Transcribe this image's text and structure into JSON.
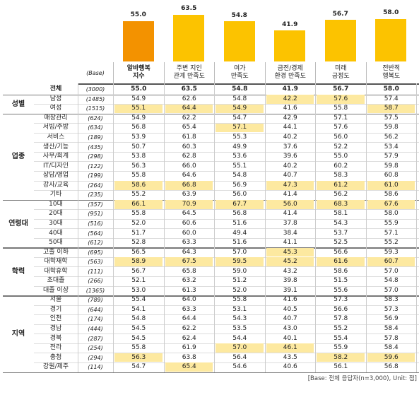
{
  "chart_data": {
    "type": "bar",
    "categories": [
      "알바행복\n지수",
      "주변 지인\n관계 만족도",
      "여가\n만족도",
      "금전/경제\n환경 만족도",
      "미래\n긍정도",
      "전반적\n행복도"
    ],
    "values": [
      55.0,
      63.5,
      54.8,
      41.9,
      56.7,
      58.0
    ],
    "value_labels": [
      "55.0",
      "63.5",
      "54.8",
      "41.9",
      "56.7",
      "58.0"
    ],
    "colors": [
      "#f39200",
      "#fcc300",
      "#fcc300",
      "#fcc300",
      "#fcc300",
      "#fcc300"
    ]
  },
  "table": {
    "base_header": "(Base)",
    "total": {
      "label": "전체",
      "base": "(3000)",
      "cells": [
        "55.0",
        "63.5",
        "54.8",
        "41.9",
        "56.7",
        "58.0"
      ]
    },
    "groups": [
      {
        "label": "성별",
        "rows": [
          {
            "label": "남성",
            "base": "(1485)",
            "cells": [
              "54.9",
              "62.6",
              "54.8",
              "42.2",
              "57.6",
              "57.4"
            ],
            "highlight": [
              3,
              4
            ]
          },
          {
            "label": "여성",
            "base": "(1515)",
            "cells": [
              "55.1",
              "64.4",
              "54.9",
              "41.6",
              "55.8",
              "58.7"
            ],
            "highlight": [
              0,
              1,
              2,
              5
            ]
          }
        ]
      },
      {
        "label": "업종",
        "rows": [
          {
            "label": "매장관리",
            "base": "(624)",
            "cells": [
              "54.9",
              "62.2",
              "54.7",
              "42.9",
              "57.1",
              "57.5"
            ],
            "highlight": []
          },
          {
            "label": "서빙/주방",
            "base": "(634)",
            "cells": [
              "56.8",
              "65.4",
              "57.1",
              "44.1",
              "57.6",
              "59.8"
            ],
            "highlight": [
              2
            ]
          },
          {
            "label": "서비스",
            "base": "(189)",
            "cells": [
              "53.9",
              "61.8",
              "55.3",
              "40.2",
              "56.0",
              "56.2"
            ],
            "highlight": []
          },
          {
            "label": "생산/기능",
            "base": "(435)",
            "cells": [
              "50.7",
              "60.3",
              "49.9",
              "37.6",
              "52.2",
              "53.4"
            ],
            "highlight": []
          },
          {
            "label": "사무/회계",
            "base": "(298)",
            "cells": [
              "53.8",
              "62.8",
              "53.6",
              "39.6",
              "55.0",
              "57.9"
            ],
            "highlight": []
          },
          {
            "label": "IT/디자인",
            "base": "(122)",
            "cells": [
              "56.3",
              "66.0",
              "55.1",
              "40.2",
              "60.2",
              "59.8"
            ],
            "highlight": []
          },
          {
            "label": "상담/영업",
            "base": "(199)",
            "cells": [
              "55.8",
              "64.6",
              "54.8",
              "40.7",
              "58.3",
              "60.8"
            ],
            "highlight": []
          },
          {
            "label": "강사/교육",
            "base": "(264)",
            "cells": [
              "58.6",
              "66.8",
              "56.9",
              "47.3",
              "61.2",
              "61.0"
            ],
            "highlight": [
              0,
              1,
              3,
              4,
              5
            ]
          },
          {
            "label": "기타",
            "base": "(235)",
            "cells": [
              "55.2",
              "63.9",
              "56.0",
              "41.4",
              "56.2",
              "58.6"
            ],
            "highlight": []
          }
        ]
      },
      {
        "label": "연령대",
        "rows": [
          {
            "label": "10대",
            "base": "(357)",
            "cells": [
              "66.1",
              "70.9",
              "67.7",
              "56.0",
              "68.3",
              "67.6"
            ],
            "highlight": [
              0,
              1,
              2,
              3,
              4,
              5
            ]
          },
          {
            "label": "20대",
            "base": "(951)",
            "cells": [
              "55.8",
              "64.5",
              "56.8",
              "41.4",
              "58.1",
              "58.0"
            ],
            "highlight": []
          },
          {
            "label": "30대",
            "base": "(516)",
            "cells": [
              "52.0",
              "60.6",
              "51.6",
              "37.8",
              "54.3",
              "55.9"
            ],
            "highlight": []
          },
          {
            "label": "40대",
            "base": "(564)",
            "cells": [
              "51.7",
              "60.0",
              "49.4",
              "38.4",
              "53.7",
              "57.1"
            ],
            "highlight": []
          },
          {
            "label": "50대",
            "base": "(612)",
            "cells": [
              "52.8",
              "63.3",
              "51.6",
              "41.1",
              "52.5",
              "55.2"
            ],
            "highlight": []
          }
        ]
      },
      {
        "label": "학력",
        "rows": [
          {
            "label": "고졸 이하",
            "base": "(695)",
            "cells": [
              "56.5",
              "64.3",
              "57.0",
              "45.3",
              "56.6",
              "59.3"
            ],
            "highlight": [
              3
            ]
          },
          {
            "label": "대학재학",
            "base": "(563)",
            "cells": [
              "58.9",
              "67.5",
              "59.5",
              "45.2",
              "61.6",
              "60.7"
            ],
            "highlight": [
              0,
              1,
              2,
              3,
              4,
              5
            ]
          },
          {
            "label": "대학휴학",
            "base": "(111)",
            "cells": [
              "56.7",
              "65.8",
              "59.0",
              "43.2",
              "58.6",
              "57.0"
            ],
            "highlight": []
          },
          {
            "label": "초대졸",
            "base": "(266)",
            "cells": [
              "52.1",
              "63.2",
              "51.2",
              "39.8",
              "51.5",
              "54.8"
            ],
            "highlight": []
          },
          {
            "label": "대졸 이상",
            "base": "(1365)",
            "cells": [
              "53.0",
              "61.3",
              "52.0",
              "39.1",
              "55.6",
              "57.0"
            ],
            "highlight": []
          }
        ]
      },
      {
        "label": "지역",
        "rows": [
          {
            "label": "서울",
            "base": "(789)",
            "cells": [
              "55.4",
              "64.0",
              "55.8",
              "41.6",
              "57.3",
              "58.3"
            ],
            "highlight": []
          },
          {
            "label": "경기",
            "base": "(644)",
            "cells": [
              "54.1",
              "63.3",
              "53.1",
              "40.5",
              "56.6",
              "57.3"
            ],
            "highlight": []
          },
          {
            "label": "인천",
            "base": "(174)",
            "cells": [
              "54.8",
              "64.4",
              "54.3",
              "40.7",
              "57.8",
              "56.9"
            ],
            "highlight": []
          },
          {
            "label": "경남",
            "base": "(444)",
            "cells": [
              "54.5",
              "62.2",
              "53.5",
              "43.0",
              "55.2",
              "58.4"
            ],
            "highlight": []
          },
          {
            "label": "경북",
            "base": "(287)",
            "cells": [
              "54.5",
              "62.4",
              "54.4",
              "40.1",
              "55.4",
              "57.8"
            ],
            "highlight": []
          },
          {
            "label": "전라",
            "base": "(254)",
            "cells": [
              "55.8",
              "61.9",
              "57.0",
              "46.1",
              "55.9",
              "58.4"
            ],
            "highlight": [
              2,
              3
            ]
          },
          {
            "label": "충청",
            "base": "(294)",
            "cells": [
              "56.3",
              "63.8",
              "56.4",
              "43.5",
              "58.2",
              "59.6"
            ],
            "highlight": [
              0,
              4,
              5
            ]
          },
          {
            "label": "강원/제주",
            "base": "(114)",
            "cells": [
              "54.7",
              "65.4",
              "54.6",
              "40.6",
              "56.1",
              "56.8"
            ],
            "highlight": [
              1
            ]
          }
        ]
      }
    ]
  },
  "footnote": "[Base: 전체 응답자(n=3,000), Unit: 점]"
}
